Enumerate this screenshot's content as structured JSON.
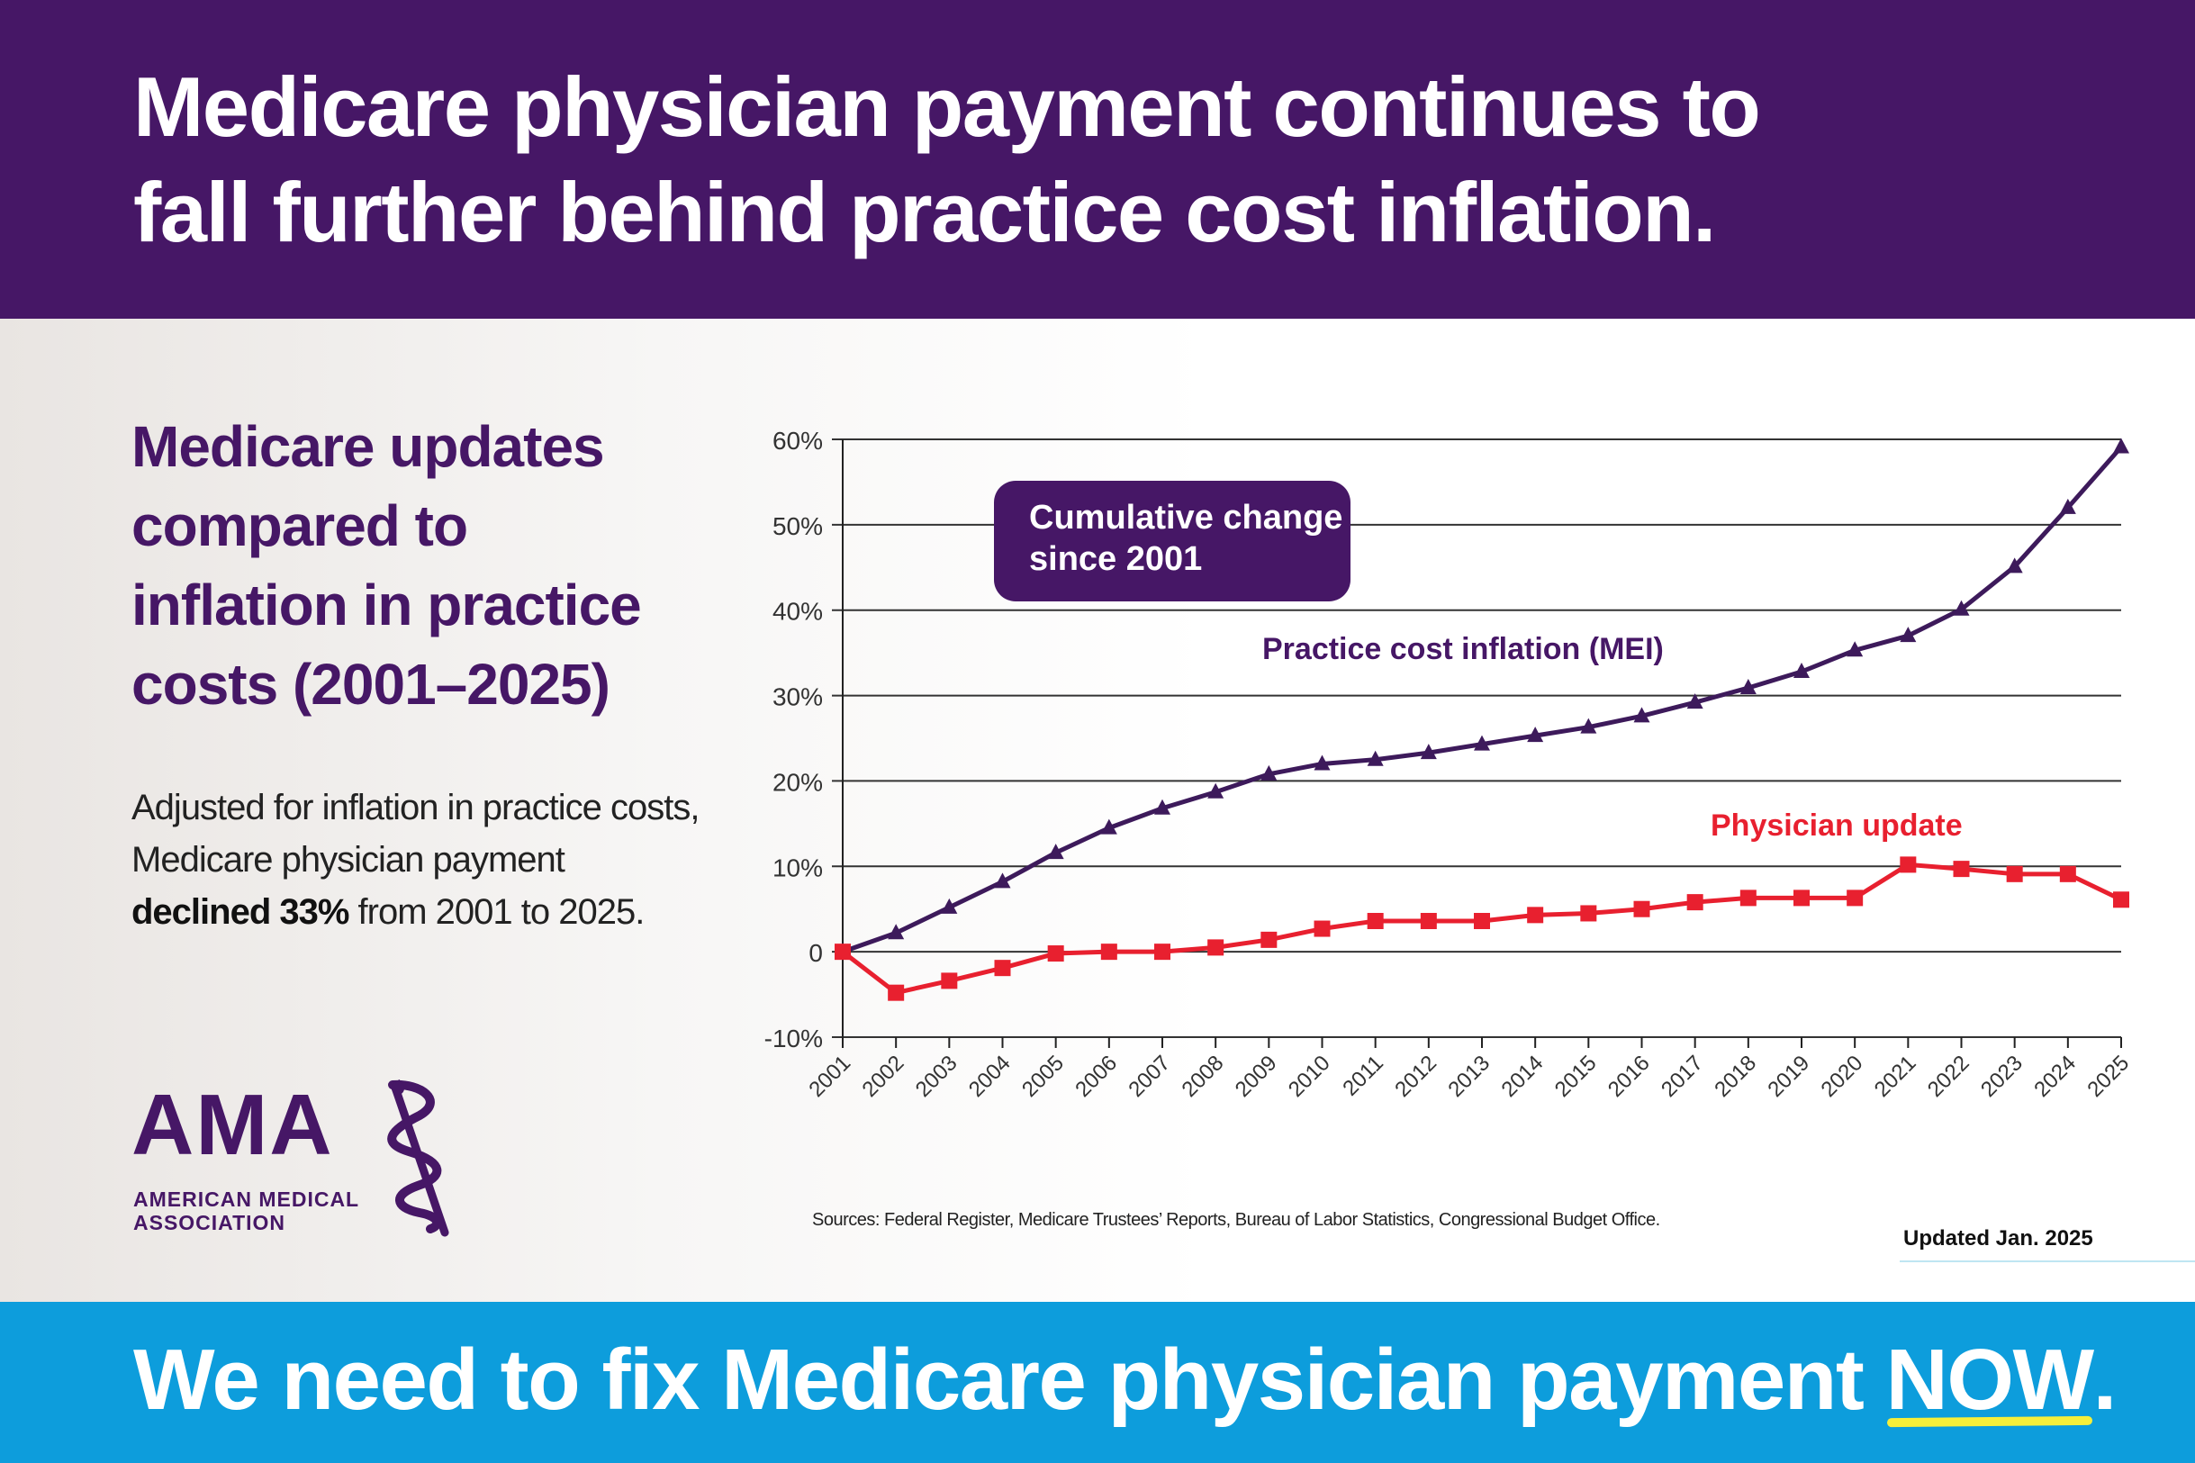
{
  "header": {
    "title_line1": "Medicare physician payment continues to",
    "title_line2": "fall further behind practice cost inflation."
  },
  "left": {
    "subhead_lines": [
      "Medicare updates",
      "compared to",
      "inflation in practice",
      "costs (2001–2025)"
    ],
    "blurb_part1": "Adjusted for inflation in practice costs, Medicare physician payment ",
    "blurb_bold": "declined 33%",
    "blurb_part2": " from 2001 to 2025."
  },
  "logo": {
    "letters": "AMA",
    "line1": "AMERICAN MEDICAL",
    "line2": "ASSOCIATION",
    "mark_icon": "staff-of-asclepius-icon"
  },
  "chart_data": {
    "type": "line",
    "title": "Cumulative change since 2001",
    "callout_lines": [
      "Cumulative change",
      "since 2001"
    ],
    "xlabel": "",
    "ylabel": "",
    "ylim": [
      -10,
      60
    ],
    "grid": true,
    "x": [
      "2001",
      "2002",
      "2003",
      "2004",
      "2005",
      "2006",
      "2007",
      "2008",
      "2009",
      "2010",
      "2011",
      "2012",
      "2013",
      "2014",
      "2015",
      "2016",
      "2017",
      "2018",
      "2019",
      "2020",
      "2021",
      "2022",
      "2023",
      "2024",
      "2025"
    ],
    "y_ticks": [
      {
        "value": 60,
        "label": "60%"
      },
      {
        "value": 50,
        "label": "50%"
      },
      {
        "value": 40,
        "label": "40%"
      },
      {
        "value": 30,
        "label": "30%"
      },
      {
        "value": 20,
        "label": "20%"
      },
      {
        "value": 10,
        "label": "10%"
      },
      {
        "value": 0,
        "label": "0"
      },
      {
        "value": -10,
        "label": "-10%"
      }
    ],
    "series": [
      {
        "name": "Practice cost inflation (MEI)",
        "label": "Practice cost inflation (MEI)",
        "color": "#3d1a5b",
        "marker": "triangle",
        "values": [
          0,
          2.2,
          5.2,
          8.2,
          11.6,
          14.5,
          16.8,
          18.7,
          20.8,
          22.0,
          22.5,
          23.3,
          24.3,
          25.3,
          26.3,
          27.6,
          29.2,
          30.9,
          32.8,
          35.3,
          37.0,
          40.1,
          45.1,
          52.0,
          59.1
        ]
      },
      {
        "name": "Physician update",
        "label": "Physician update",
        "color": "#e8202f",
        "marker": "square",
        "values": [
          0,
          -4.8,
          -3.4,
          -1.9,
          -0.2,
          0.0,
          0.0,
          0.5,
          1.4,
          2.7,
          3.6,
          3.6,
          3.6,
          4.3,
          4.5,
          5.0,
          5.8,
          6.3,
          6.3,
          6.3,
          10.2,
          9.7,
          9.1,
          9.1,
          6.1
        ]
      }
    ]
  },
  "sources": "Sources: Federal Register, Medicare Trustees’ Reports, Bureau of Labor Statistics, Congressional Budget Office.",
  "updated": "Updated Jan. 2025",
  "footer": {
    "text_before": "We need to fix Medicare physician payment ",
    "emphasis": "NOW",
    "text_after": "."
  },
  "colors": {
    "purple": "#461766",
    "blue": "#0d9ddc",
    "red": "#e8202f",
    "highlight": "#f6ef3a"
  }
}
